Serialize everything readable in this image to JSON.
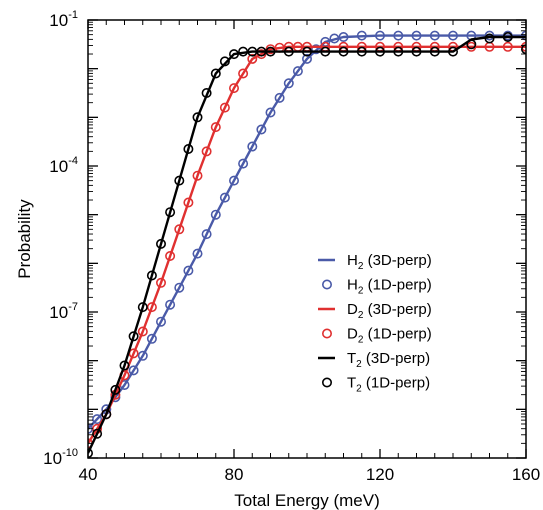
{
  "chart_data": {
    "type": "line",
    "title": "",
    "xlabel": "Total Energy (meV)",
    "ylabel": "Probability",
    "xlim": [
      40,
      160
    ],
    "ylim_exponent": [
      -10,
      -1
    ],
    "yscale": "log",
    "x_ticks": [
      40,
      80,
      120,
      160
    ],
    "y_ticks": [
      {
        "base": "10",
        "exp": "-10",
        "power": -10
      },
      {
        "base": "10",
        "exp": "-7",
        "power": -7
      },
      {
        "base": "10",
        "exp": "-4",
        "power": -4
      },
      {
        "base": "10",
        "exp": "-1",
        "power": -1
      }
    ],
    "grid": false,
    "legend_position": "lower-right",
    "series": [
      {
        "name": "H2 (3D-perp)",
        "legend": {
          "main": "H",
          "sub": "2",
          "rest": " (3D-perp)"
        },
        "style": "line",
        "color": "#4a5aa8",
        "x": [
          40,
          45,
          50,
          55,
          60,
          65,
          70,
          75,
          80,
          85,
          90,
          95,
          100,
          105,
          110,
          120,
          130,
          140,
          150,
          160
        ],
        "log10_y": [
          -9.4,
          -9.0,
          -8.5,
          -7.9,
          -7.2,
          -6.5,
          -5.8,
          -5.0,
          -4.3,
          -3.6,
          -2.9,
          -2.3,
          -1.8,
          -1.45,
          -1.35,
          -1.32,
          -1.32,
          -1.32,
          -1.32,
          -1.32
        ]
      },
      {
        "name": "H2 (1D-perp)",
        "legend": {
          "main": "H",
          "sub": "2",
          "rest": " (1D-perp)"
        },
        "style": "marker",
        "color": "#4a5aa8",
        "x": [
          40,
          42.5,
          45,
          47.5,
          50,
          52.5,
          55,
          57.5,
          60,
          62.5,
          65,
          67.5,
          70,
          72.5,
          75,
          77.5,
          80,
          82.5,
          85,
          87.5,
          90,
          92.5,
          95,
          97.5,
          100,
          102.5,
          105,
          107.5,
          110,
          115,
          120,
          125,
          130,
          135,
          140,
          145,
          150,
          155,
          160
        ],
        "log10_y": [
          -9.4,
          -9.2,
          -9.0,
          -8.75,
          -8.5,
          -8.2,
          -7.9,
          -7.55,
          -7.2,
          -6.85,
          -6.5,
          -6.15,
          -5.8,
          -5.4,
          -5.0,
          -4.65,
          -4.3,
          -3.95,
          -3.6,
          -3.25,
          -2.9,
          -2.6,
          -2.3,
          -2.05,
          -1.8,
          -1.6,
          -1.45,
          -1.38,
          -1.35,
          -1.32,
          -1.32,
          -1.32,
          -1.32,
          -1.32,
          -1.32,
          -1.32,
          -1.32,
          -1.32,
          -1.32
        ]
      },
      {
        "name": "D2 (3D-perp)",
        "legend": {
          "main": "D",
          "sub": "2",
          "rest": " (3D-perp)"
        },
        "style": "line",
        "color": "#e03030",
        "x": [
          40,
          45,
          50,
          55,
          60,
          65,
          70,
          75,
          80,
          85,
          90,
          95,
          100,
          110,
          120,
          130,
          140,
          150,
          160
        ],
        "log10_y": [
          -9.7,
          -9.1,
          -8.3,
          -7.4,
          -6.4,
          -5.3,
          -4.2,
          -3.2,
          -2.4,
          -1.8,
          -1.6,
          -1.55,
          -1.55,
          -1.55,
          -1.55,
          -1.55,
          -1.55,
          -1.55,
          -1.55
        ]
      },
      {
        "name": "D2 (1D-perp)",
        "legend": {
          "main": "D",
          "sub": "2",
          "rest": " (1D-perp)"
        },
        "style": "marker",
        "color": "#e03030",
        "x": [
          40,
          42.5,
          45,
          47.5,
          50,
          52.5,
          55,
          57.5,
          60,
          62.5,
          65,
          67.5,
          70,
          72.5,
          75,
          77.5,
          80,
          82.5,
          85,
          87.5,
          90,
          92.5,
          95,
          97.5,
          100,
          105,
          110,
          115,
          120,
          125,
          130,
          135,
          140,
          145,
          150,
          155,
          160
        ],
        "log10_y": [
          -9.7,
          -9.4,
          -9.1,
          -8.7,
          -8.3,
          -7.85,
          -7.4,
          -6.9,
          -6.4,
          -5.85,
          -5.3,
          -4.75,
          -4.2,
          -3.7,
          -3.2,
          -2.8,
          -2.4,
          -2.1,
          -1.8,
          -1.7,
          -1.6,
          -1.57,
          -1.55,
          -1.55,
          -1.55,
          -1.55,
          -1.55,
          -1.55,
          -1.55,
          -1.55,
          -1.55,
          -1.55,
          -1.55,
          -1.55,
          -1.55,
          -1.55,
          -1.55
        ]
      },
      {
        "name": "T2 (3D-perp)",
        "legend": {
          "main": "T",
          "sub": "2",
          "rest": " (3D-perp)"
        },
        "style": "line",
        "color": "#000000",
        "x": [
          40,
          45,
          50,
          55,
          60,
          65,
          70,
          75,
          80,
          85,
          90,
          95,
          100,
          105,
          110,
          120,
          130,
          140,
          145,
          150,
          155,
          160
        ],
        "log10_y": [
          -9.9,
          -9.1,
          -8.1,
          -6.9,
          -5.6,
          -4.3,
          -3.0,
          -2.1,
          -1.7,
          -1.65,
          -1.65,
          -1.65,
          -1.65,
          -1.65,
          -1.65,
          -1.65,
          -1.65,
          -1.65,
          -1.4,
          -1.35,
          -1.35,
          -1.35
        ]
      },
      {
        "name": "T2 (1D-perp)",
        "legend": {
          "main": "T",
          "sub": "2",
          "rest": " (1D-perp)"
        },
        "style": "marker",
        "color": "#000000",
        "x": [
          40,
          42.5,
          45,
          47.5,
          50,
          52.5,
          55,
          57.5,
          60,
          62.5,
          65,
          67.5,
          70,
          72.5,
          75,
          77.5,
          80,
          82.5,
          85,
          87.5,
          90,
          95,
          100,
          105,
          110,
          115,
          120,
          125,
          130,
          135,
          140,
          145,
          150,
          155,
          160
        ],
        "log10_y": [
          -9.9,
          -9.5,
          -9.1,
          -8.6,
          -8.1,
          -7.5,
          -6.9,
          -6.25,
          -5.6,
          -4.95,
          -4.3,
          -3.65,
          -3.0,
          -2.5,
          -2.1,
          -1.85,
          -1.7,
          -1.65,
          -1.65,
          -1.65,
          -1.65,
          -1.65,
          -1.65,
          -1.65,
          -1.65,
          -1.65,
          -1.65,
          -1.65,
          -1.65,
          -1.65,
          -1.65,
          -1.5,
          -1.38,
          -1.35,
          -1.6
        ]
      }
    ]
  }
}
